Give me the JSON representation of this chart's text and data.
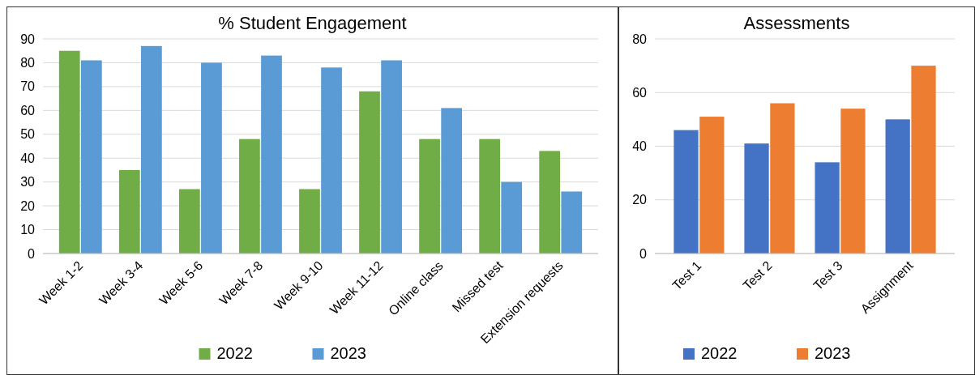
{
  "chart_data": [
    {
      "type": "bar",
      "title": "% Student Engagement",
      "categories": [
        "Week 1-2",
        "Week 3-4",
        "Week 5-6",
        "Week 7-8",
        "Week 9-10",
        "Week 11-12",
        "Online class",
        "Missed test",
        "Extension requests"
      ],
      "series": [
        {
          "name": "2022",
          "color": "#70ad47",
          "values": [
            85,
            35,
            27,
            48,
            27,
            68,
            48,
            48,
            43
          ]
        },
        {
          "name": "2023",
          "color": "#5b9bd5",
          "values": [
            81,
            87,
            80,
            83,
            78,
            81,
            61,
            30,
            26
          ]
        }
      ],
      "ylim": [
        0,
        90
      ],
      "yticks": [
        0,
        10,
        20,
        30,
        40,
        50,
        60,
        70,
        80,
        90
      ],
      "grid": "y",
      "legend": "bottom"
    },
    {
      "type": "bar",
      "title": "Assessments",
      "categories": [
        "Test 1",
        "Test 2",
        "Test 3",
        "Assignment"
      ],
      "series": [
        {
          "name": "2022",
          "color": "#4472c4",
          "values": [
            46,
            41,
            34,
            50
          ]
        },
        {
          "name": "2023",
          "color": "#ed7d31",
          "values": [
            51,
            56,
            54,
            70
          ]
        }
      ],
      "ylim": [
        0,
        80
      ],
      "yticks": [
        0,
        20,
        40,
        60,
        80
      ],
      "grid": "y",
      "legend": "bottom"
    }
  ]
}
